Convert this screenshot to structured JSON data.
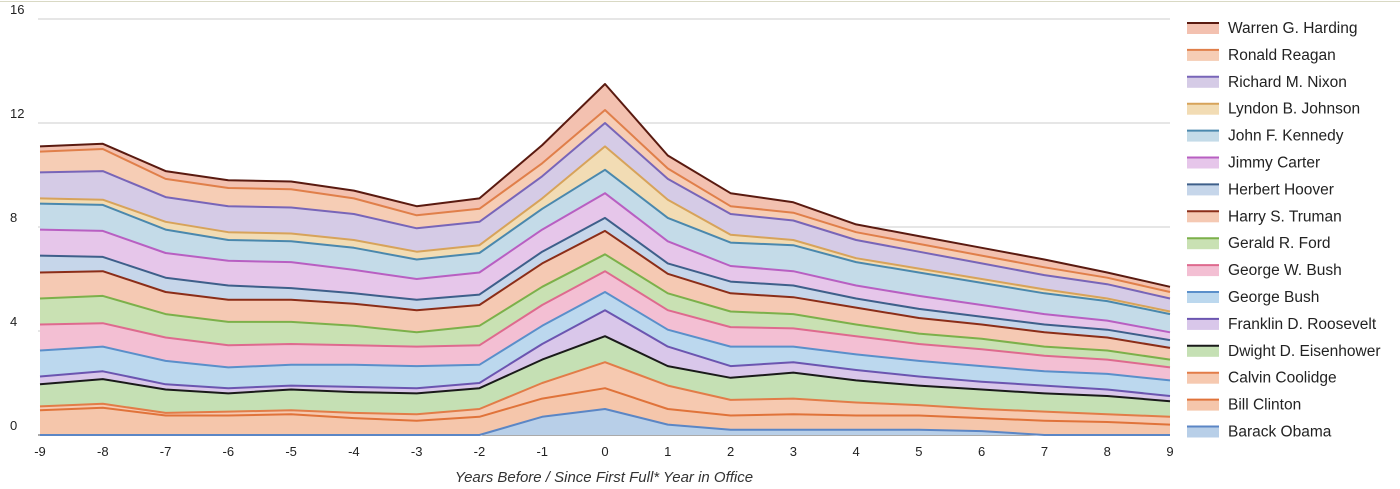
{
  "chart_data": {
    "type": "area",
    "stacked": true,
    "xlabel": "Years Before / Since First Full* Year in Office",
    "ylabel": "",
    "x": [
      -9,
      -8,
      -7,
      -6,
      -5,
      -4,
      -3,
      -2,
      -1,
      0,
      1,
      2,
      3,
      4,
      5,
      6,
      7,
      8,
      9
    ],
    "ylim": [
      0,
      16
    ],
    "yticks": [
      0,
      4,
      8,
      12,
      16
    ],
    "grid": true,
    "legend_position": "right",
    "series": [
      {
        "name": "Barack Obama",
        "color": "#b8cfe8",
        "line": "#5b86c5",
        "values": [
          0,
          0,
          0,
          0,
          0,
          0,
          0,
          0,
          0.7,
          1.0,
          0.4,
          0.2,
          0.2,
          0.2,
          0.2,
          0.15,
          0,
          0,
          0
        ]
      },
      {
        "name": "Bill Clinton",
        "color": "#f5c6ab",
        "line": "#e0733a",
        "values": [
          0.95,
          1.05,
          0.75,
          0.75,
          0.8,
          0.65,
          0.55,
          0.7,
          0.7,
          0.8,
          0.6,
          0.55,
          0.6,
          0.55,
          0.55,
          0.5,
          0.55,
          0.5,
          0.4
        ]
      },
      {
        "name": "Calvin Coolidge",
        "color": "#f6c9b0",
        "line": "#e27c48",
        "values": [
          0.15,
          0.15,
          0.1,
          0.15,
          0.15,
          0.2,
          0.25,
          0.3,
          0.6,
          1.0,
          0.9,
          0.6,
          0.6,
          0.5,
          0.4,
          0.35,
          0.35,
          0.3,
          0.3
        ]
      },
      {
        "name": "Dwight D. Eisenhower",
        "color": "#c5e0b4",
        "line": "#1a1a1a",
        "values": [
          0.85,
          0.95,
          0.9,
          0.7,
          0.8,
          0.8,
          0.8,
          0.8,
          0.9,
          1.0,
          0.75,
          0.85,
          1.0,
          0.85,
          0.75,
          0.75,
          0.7,
          0.7,
          0.6
        ]
      },
      {
        "name": "Franklin D. Roosevelt",
        "color": "#d9c7ea",
        "line": "#6b55b0",
        "values": [
          0.3,
          0.3,
          0.2,
          0.2,
          0.15,
          0.2,
          0.2,
          0.2,
          0.6,
          1.0,
          0.75,
          0.45,
          0.4,
          0.4,
          0.35,
          0.3,
          0.3,
          0.25,
          0.2
        ]
      },
      {
        "name": "George Bush",
        "color": "#bcd8ee",
        "line": "#5a8fca",
        "values": [
          1.0,
          0.95,
          0.9,
          0.8,
          0.8,
          0.85,
          0.85,
          0.7,
          0.7,
          0.7,
          0.65,
          0.75,
          0.6,
          0.6,
          0.6,
          0.6,
          0.55,
          0.6,
          0.6
        ]
      },
      {
        "name": "George W. Bush",
        "color": "#f3bfd3",
        "line": "#de6a8e",
        "values": [
          1.0,
          0.9,
          0.9,
          0.85,
          0.8,
          0.75,
          0.75,
          0.75,
          0.8,
          0.8,
          0.75,
          0.75,
          0.7,
          0.7,
          0.65,
          0.65,
          0.6,
          0.55,
          0.5
        ]
      },
      {
        "name": "Gerald R. Ford",
        "color": "#c9e1b3",
        "line": "#7cb04a",
        "values": [
          1.0,
          1.05,
          0.9,
          0.9,
          0.85,
          0.75,
          0.55,
          0.75,
          0.7,
          0.65,
          0.65,
          0.6,
          0.55,
          0.45,
          0.4,
          0.4,
          0.35,
          0.35,
          0.3
        ]
      },
      {
        "name": "Harry S. Truman",
        "color": "#f5c9b3",
        "line": "#8b2d18",
        "values": [
          1.0,
          0.95,
          0.85,
          0.85,
          0.85,
          0.85,
          0.85,
          0.8,
          0.9,
          0.9,
          0.75,
          0.7,
          0.65,
          0.65,
          0.6,
          0.55,
          0.55,
          0.5,
          0.45
        ]
      },
      {
        "name": "Herbert Hoover",
        "color": "#c6d6ea",
        "line": "#3e5f8a",
        "values": [
          0.65,
          0.55,
          0.55,
          0.55,
          0.45,
          0.4,
          0.4,
          0.4,
          0.45,
          0.5,
          0.4,
          0.45,
          0.45,
          0.35,
          0.35,
          0.3,
          0.3,
          0.3,
          0.3
        ]
      },
      {
        "name": "Jimmy Carter",
        "color": "#e6c6ea",
        "line": "#b85fc2",
        "values": [
          1.0,
          1.0,
          0.95,
          0.95,
          1.0,
          0.9,
          0.8,
          0.85,
          0.85,
          0.95,
          0.85,
          0.6,
          0.55,
          0.5,
          0.5,
          0.45,
          0.4,
          0.35,
          0.3
        ]
      },
      {
        "name": "John F. Kennedy",
        "color": "#c4dbe8",
        "line": "#4a88ad",
        "values": [
          1.0,
          1.0,
          0.9,
          0.8,
          0.8,
          0.85,
          0.75,
          0.75,
          0.8,
          0.9,
          0.9,
          0.9,
          1.0,
          0.9,
          0.9,
          0.85,
          0.8,
          0.75,
          0.7
        ]
      },
      {
        "name": "Lyndon B. Johnson",
        "color": "#f2dcb4",
        "line": "#d7a35a",
        "values": [
          0.2,
          0.2,
          0.3,
          0.3,
          0.3,
          0.3,
          0.3,
          0.3,
          0.4,
          0.9,
          0.7,
          0.3,
          0.2,
          0.15,
          0.15,
          0.15,
          0.15,
          0.1,
          0.1
        ]
      },
      {
        "name": "Richard M. Nixon",
        "color": "#d5cbe6",
        "line": "#7865b8",
        "values": [
          1.0,
          1.1,
          0.95,
          1.0,
          1.0,
          1.0,
          0.9,
          0.9,
          0.85,
          0.9,
          0.8,
          0.8,
          0.75,
          0.7,
          0.65,
          0.6,
          0.55,
          0.55,
          0.5
        ]
      },
      {
        "name": "Ronald Reagan",
        "color": "#f6cdb5",
        "line": "#e07f4a",
        "values": [
          0.8,
          0.85,
          0.7,
          0.7,
          0.7,
          0.6,
          0.5,
          0.5,
          0.5,
          0.5,
          0.4,
          0.3,
          0.3,
          0.3,
          0.3,
          0.3,
          0.3,
          0.25,
          0.25
        ]
      },
      {
        "name": "Warren G. Harding",
        "color": "#f3c1b0",
        "line": "#5a1a10",
        "values": [
          0.2,
          0.2,
          0.3,
          0.3,
          0.3,
          0.3,
          0.35,
          0.4,
          0.7,
          1.0,
          0.5,
          0.5,
          0.4,
          0.3,
          0.3,
          0.3,
          0.3,
          0.2,
          0.2
        ]
      }
    ]
  }
}
